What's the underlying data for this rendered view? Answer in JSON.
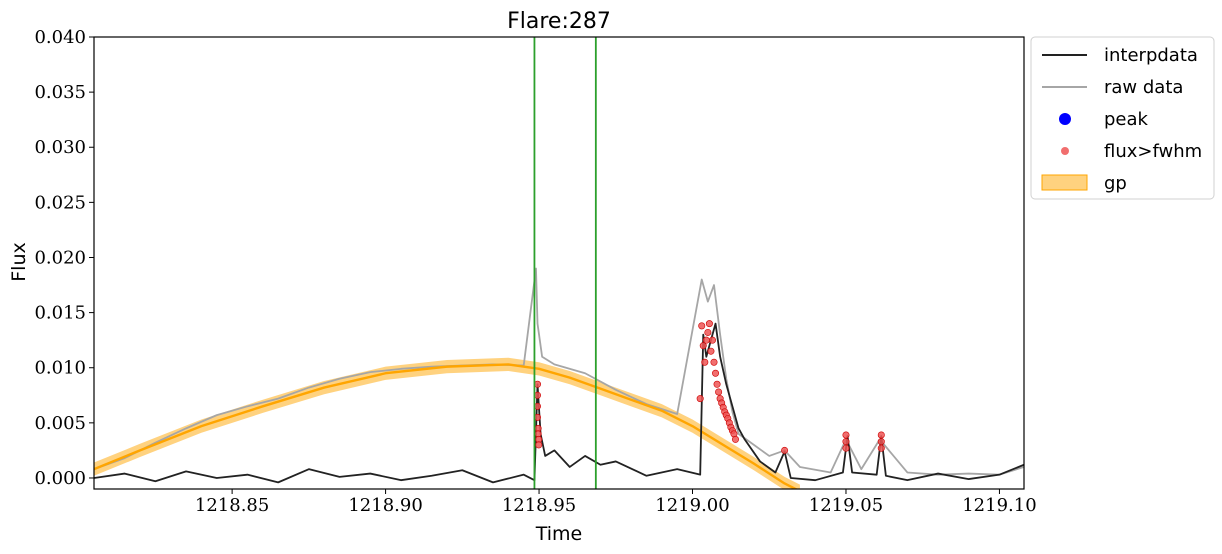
{
  "chart_data": {
    "type": "line",
    "title": "Flare:287",
    "xlabel": "Time",
    "ylabel": "Flux",
    "xlim": [
      1218.805,
      1219.108
    ],
    "ylim": [
      -0.001,
      0.04
    ],
    "xticks": [
      {
        "v": 1218.85,
        "label": "1218.85"
      },
      {
        "v": 1218.9,
        "label": "1218.90"
      },
      {
        "v": 1218.95,
        "label": "1218.95"
      },
      {
        "v": 1219.0,
        "label": "1219.00"
      },
      {
        "v": 1219.05,
        "label": "1219.05"
      },
      {
        "v": 1219.1,
        "label": "1219.10"
      }
    ],
    "yticks": [
      {
        "v": 0.0,
        "label": "0.000"
      },
      {
        "v": 0.005,
        "label": "0.005"
      },
      {
        "v": 0.01,
        "label": "0.010"
      },
      {
        "v": 0.015,
        "label": "0.015"
      },
      {
        "v": 0.02,
        "label": "0.020"
      },
      {
        "v": 0.025,
        "label": "0.025"
      },
      {
        "v": 0.03,
        "label": "0.030"
      },
      {
        "v": 0.035,
        "label": "0.035"
      },
      {
        "v": 0.04,
        "label": "0.040"
      }
    ],
    "grid": false,
    "legend_position": "outside-top-right",
    "vlines": [
      1218.9485,
      1218.9685
    ],
    "colors": {
      "interpdata": "#222222",
      "raw_data": "#a6a6a6",
      "peak": "#0000ff",
      "flux_fwhm": "#ee5555",
      "gp": "#ffa500",
      "vline": "#2ca02c"
    },
    "legend": [
      {
        "key": "interpdata",
        "label": "interpdata",
        "marker": "line"
      },
      {
        "key": "raw_data",
        "label": "raw data",
        "marker": "line"
      },
      {
        "key": "peak",
        "label": "peak",
        "marker": "dot"
      },
      {
        "key": "flux_fwhm",
        "label": "flux>fwhm",
        "marker": "smalldot"
      },
      {
        "key": "gp",
        "label": "gp",
        "marker": "patch"
      }
    ],
    "series": [
      {
        "name": "raw data",
        "x": [
          1218.805,
          1218.815,
          1218.825,
          1218.835,
          1218.845,
          1218.855,
          1218.865,
          1218.875,
          1218.885,
          1218.895,
          1218.905,
          1218.915,
          1218.925,
          1218.935,
          1218.945,
          1218.949,
          1218.9495,
          1218.951,
          1218.955,
          1218.965,
          1218.975,
          1218.985,
          1218.995,
          1219.003,
          1219.005,
          1219.007,
          1219.009,
          1219.011,
          1219.013,
          1219.015,
          1219.02,
          1219.025,
          1219.03,
          1219.035,
          1219.045,
          1219.05,
          1219.055,
          1219.061,
          1219.07,
          1219.08,
          1219.09,
          1219.1,
          1219.108
        ],
        "y": [
          0.0008,
          0.0018,
          0.0032,
          0.0045,
          0.0057,
          0.0065,
          0.0072,
          0.0082,
          0.009,
          0.0096,
          0.0099,
          0.0101,
          0.0102,
          0.0103,
          0.0102,
          0.019,
          0.014,
          0.011,
          0.0103,
          0.0095,
          0.008,
          0.0067,
          0.0058,
          0.018,
          0.016,
          0.0175,
          0.013,
          0.009,
          0.006,
          0.004,
          0.003,
          0.002,
          0.0025,
          0.001,
          0.0005,
          0.0035,
          0.0008,
          0.0035,
          0.0005,
          0.0003,
          0.0004,
          0.0003,
          0.001
        ]
      },
      {
        "name": "gp",
        "x": [
          1218.805,
          1218.82,
          1218.84,
          1218.86,
          1218.88,
          1218.9,
          1218.92,
          1218.94,
          1218.95,
          1218.96,
          1218.97,
          1218.98,
          1218.99,
          1219.0,
          1219.01,
          1219.02,
          1219.03,
          1219.035
        ],
        "y": [
          0.0008,
          0.0025,
          0.0047,
          0.0065,
          0.0082,
          0.0095,
          0.0101,
          0.0103,
          0.0099,
          0.0091,
          0.0081,
          0.0071,
          0.0061,
          0.0047,
          0.003,
          0.0013,
          -0.0005,
          -0.0012
        ]
      },
      {
        "name": "interpdata",
        "x": [
          1218.805,
          1218.815,
          1218.825,
          1218.835,
          1218.845,
          1218.855,
          1218.865,
          1218.875,
          1218.885,
          1218.895,
          1218.905,
          1218.915,
          1218.925,
          1218.935,
          1218.945,
          1218.9485,
          1218.9495,
          1218.9505,
          1218.952,
          1218.955,
          1218.96,
          1218.965,
          1218.97,
          1218.975,
          1218.985,
          1218.995,
          1219.0025,
          1219.0035,
          1219.0045,
          1219.006,
          1219.0075,
          1219.009,
          1219.011,
          1219.013,
          1219.015,
          1219.017,
          1219.022,
          1219.027,
          1219.03,
          1219.032,
          1219.04,
          1219.049,
          1219.0505,
          1219.052,
          1219.06,
          1219.0615,
          1219.063,
          1219.07,
          1219.08,
          1219.09,
          1219.1,
          1219.108
        ],
        "y": [
          0.0,
          0.0004,
          -0.0003,
          0.0006,
          0.0,
          0.0003,
          -0.0004,
          0.0008,
          0.0001,
          0.0004,
          -0.0002,
          0.0002,
          0.0007,
          -0.0004,
          0.0003,
          -0.0002,
          0.0085,
          0.004,
          0.002,
          0.0025,
          0.001,
          0.002,
          0.0012,
          0.0015,
          0.0002,
          0.0008,
          0.0003,
          0.013,
          0.011,
          0.0125,
          0.014,
          0.011,
          0.0085,
          0.0065,
          0.0045,
          0.0035,
          0.0015,
          0.0005,
          0.0024,
          0.0,
          -0.0002,
          0.0005,
          0.0038,
          0.0005,
          0.0003,
          0.0038,
          0.0002,
          -0.0002,
          0.0004,
          -0.0001,
          0.0003,
          0.0012
        ]
      },
      {
        "name": "flux>fwhm",
        "x": [
          1218.9495,
          1218.9495,
          1218.9495,
          1218.9495,
          1218.9497,
          1218.9497,
          1218.9499,
          1218.9499,
          1219.0025,
          1219.003,
          1219.0035,
          1219.004,
          1219.0045,
          1219.005,
          1219.0055,
          1219.006,
          1219.0065,
          1219.007,
          1219.0075,
          1219.008,
          1219.0085,
          1219.009,
          1219.0095,
          1219.01,
          1219.0105,
          1219.011,
          1219.0115,
          1219.012,
          1219.0125,
          1219.013,
          1219.0135,
          1219.014,
          1219.03,
          1219.05,
          1219.05,
          1219.05,
          1219.0615,
          1219.0615,
          1219.0615
        ],
        "y": [
          0.0085,
          0.0075,
          0.0065,
          0.0055,
          0.0045,
          0.004,
          0.0035,
          0.003,
          0.0072,
          0.0138,
          0.012,
          0.0105,
          0.0125,
          0.0132,
          0.014,
          0.0115,
          0.0125,
          0.0105,
          0.0095,
          0.0085,
          0.0078,
          0.0072,
          0.0068,
          0.0064,
          0.006,
          0.0057,
          0.0054,
          0.005,
          0.0046,
          0.0043,
          0.004,
          0.0035,
          0.0025,
          0.0039,
          0.0033,
          0.0027,
          0.0039,
          0.0033,
          0.0027
        ]
      },
      {
        "name": "peak",
        "x": [],
        "y": []
      }
    ]
  }
}
